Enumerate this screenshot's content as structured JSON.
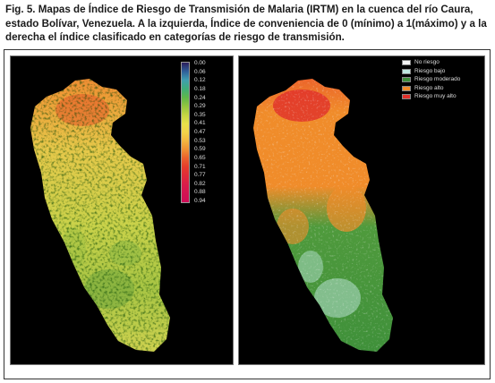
{
  "caption": "Fig. 5. Mapas de Índice de Riesgo de Transmisión de Malaria (IRTM) en la cuenca del río Caura, estado Bolívar, Venezuela. A la izquierda, Índice de conveniencia de 0 (mínimo) a 1(máximo) y a la derecha el índice clasificado en categorías de riesgo de transmisión.",
  "left_map": {
    "colorbar_ticks": [
      "0.00",
      "0.06",
      "0.12",
      "0.18",
      "0.24",
      "0.29",
      "0.35",
      "0.41",
      "0.47",
      "0.53",
      "0.59",
      "0.65",
      "0.71",
      "0.77",
      "0.82",
      "0.88",
      "0.94"
    ],
    "colorbar_colors": [
      "#2b1e5c",
      "#2f5f9a",
      "#3f9fb0",
      "#3fae7a",
      "#5fb84a",
      "#94c63f",
      "#c4d443",
      "#e8e04a",
      "#f2d24a",
      "#f3b540",
      "#ef8f33",
      "#ea5e2d",
      "#e63a2c",
      "#e02a3a",
      "#d91c4a",
      "#d31352",
      "#cf0c57"
    ]
  },
  "right_map": {
    "legend": [
      {
        "label": "No riesgo",
        "color": "#f4f4f4"
      },
      {
        "label": "Riesgo bajo",
        "color": "#bfe8e0"
      },
      {
        "label": "Riesgo moderado",
        "color": "#3d8f3a"
      },
      {
        "label": "Riesgo alto",
        "color": "#f08c2a"
      },
      {
        "label": "Riesgo muy alto",
        "color": "#e0302a"
      }
    ]
  }
}
